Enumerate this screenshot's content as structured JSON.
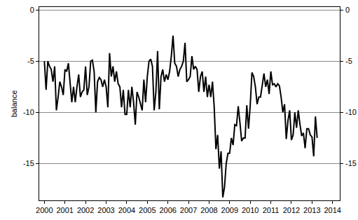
{
  "chart_data": {
    "type": "line",
    "y_label": "balance",
    "color": "#000000",
    "grid": true,
    "xlim": [
      1999.75,
      2014.35
    ],
    "xticks": [
      2000,
      2001,
      2002,
      2003,
      2004,
      2005,
      2006,
      2007,
      2008,
      2009,
      2010,
      2011,
      2012,
      2013,
      2014
    ],
    "ylim": [
      -18.6,
      0.3
    ],
    "yticks": [
      -15,
      -10,
      -5,
      0
    ],
    "x": [
      2000.0,
      2000.083,
      2000.167,
      2000.25,
      2000.333,
      2000.417,
      2000.5,
      2000.583,
      2000.667,
      2000.75,
      2000.833,
      2000.917,
      2001.0,
      2001.083,
      2001.167,
      2001.25,
      2001.333,
      2001.417,
      2001.5,
      2001.583,
      2001.667,
      2001.75,
      2001.833,
      2001.917,
      2002.0,
      2002.083,
      2002.167,
      2002.25,
      2002.333,
      2002.417,
      2002.5,
      2002.583,
      2002.667,
      2002.75,
      2002.833,
      2002.917,
      2003.0,
      2003.083,
      2003.167,
      2003.25,
      2003.333,
      2003.417,
      2003.5,
      2003.583,
      2003.667,
      2003.75,
      2003.833,
      2003.917,
      2004.0,
      2004.083,
      2004.167,
      2004.25,
      2004.333,
      2004.417,
      2004.5,
      2004.583,
      2004.667,
      2004.75,
      2004.833,
      2004.917,
      2005.0,
      2005.083,
      2005.167,
      2005.25,
      2005.333,
      2005.417,
      2005.5,
      2005.583,
      2005.667,
      2005.75,
      2005.833,
      2005.917,
      2006.0,
      2006.083,
      2006.167,
      2006.25,
      2006.333,
      2006.417,
      2006.5,
      2006.583,
      2006.667,
      2006.75,
      2006.833,
      2006.917,
      2007.0,
      2007.083,
      2007.167,
      2007.25,
      2007.333,
      2007.417,
      2007.5,
      2007.583,
      2007.667,
      2007.75,
      2007.833,
      2007.917,
      2008.0,
      2008.083,
      2008.167,
      2008.25,
      2008.333,
      2008.417,
      2008.5,
      2008.583,
      2008.667,
      2008.75,
      2008.833,
      2008.917,
      2009.0,
      2009.083,
      2009.167,
      2009.25,
      2009.333,
      2009.417,
      2009.5,
      2009.583,
      2009.667,
      2009.75,
      2009.833,
      2009.917,
      2010.0,
      2010.083,
      2010.167,
      2010.25,
      2010.333,
      2010.417,
      2010.5,
      2010.583,
      2010.667,
      2010.75,
      2010.833,
      2010.917,
      2011.0,
      2011.083,
      2011.167,
      2011.25,
      2011.333,
      2011.417,
      2011.5,
      2011.583,
      2011.667,
      2011.75,
      2011.833,
      2011.917,
      2012.0,
      2012.083,
      2012.167,
      2012.25,
      2012.333,
      2012.417,
      2012.5,
      2012.583,
      2012.667,
      2012.75,
      2012.833,
      2012.917,
      2013.0,
      2013.083,
      2013.167,
      2013.25
    ],
    "values": [
      -5,
      -7.8,
      -5,
      -5.5,
      -5.8,
      -7,
      -5.5,
      -9.8,
      -8.5,
      -7,
      -7.5,
      -8.3,
      -5.8,
      -6,
      -5.2,
      -7,
      -9,
      -7.5,
      -9,
      -7.5,
      -6.3,
      -8.5,
      -8,
      -7.8,
      -5.5,
      -8.3,
      -7.5,
      -5,
      -4.9,
      -6,
      -10,
      -7,
      -6.6,
      -6.8,
      -7.5,
      -6.8,
      -7.5,
      -9.5,
      -4.2,
      -6.5,
      -5.5,
      -7,
      -6,
      -7.2,
      -7.5,
      -9.5,
      -7.8,
      -10.2,
      -10.2,
      -7.8,
      -9.5,
      -7.5,
      -9,
      -11.2,
      -8,
      -8.5,
      -9.2,
      -9.8,
      -6.8,
      -9,
      -6.5,
      -5,
      -4.8,
      -5.5,
      -9.8,
      -8,
      -4,
      -9.7,
      -6.5,
      -5.8,
      -7,
      -6.3,
      -6.8,
      -6,
      -4.5,
      -2.5,
      -5.2,
      -5.5,
      -6.5,
      -5.8,
      -5.5,
      -5,
      -3.2,
      -7,
      -6.8,
      -6.5,
      -4.5,
      -5.8,
      -5.5,
      -5.8,
      -8,
      -6.5,
      -6,
      -8,
      -6.5,
      -8.5,
      -7.3,
      -8.5,
      -7,
      -9.5,
      -13.6,
      -12.2,
      -15.5,
      -13.8,
      -18.3,
      -17.3,
      -15,
      -14,
      -14,
      -12.5,
      -13.2,
      -11.2,
      -11.3,
      -9.4,
      -11,
      -12.8,
      -12.5,
      -12.5,
      -9.3,
      -11.6,
      -9.3,
      -6.1,
      -6.5,
      -7.5,
      -9.2,
      -8.5,
      -8.5,
      -7.3,
      -6.2,
      -7.5,
      -6.8,
      -8.2,
      -6,
      -7.3,
      -7.2,
      -7.5,
      -7.2,
      -7.4,
      -8.5,
      -10,
      -9.2,
      -12.6,
      -10.8,
      -9.8,
      -12.7,
      -12.2,
      -10,
      -11.5,
      -9.8,
      -11.2,
      -12.3,
      -12,
      -13.5,
      -11.6,
      -11.6,
      -12.2,
      -12.4,
      -14.3,
      -10.4,
      -12.5
    ]
  }
}
